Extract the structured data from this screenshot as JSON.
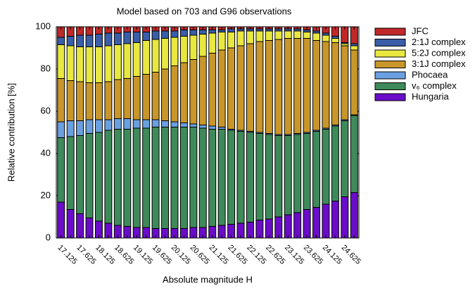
{
  "chart_data": {
    "type": "stacked_bar",
    "title": "Model based on 703 and G96 observations",
    "x_label": "Absolute magnitude H",
    "y_label": "Relative contribution [%]",
    "categories": [
      "17.125",
      null,
      "17.625",
      null,
      "18.125",
      null,
      "18.625",
      null,
      "19.125",
      null,
      "19.625",
      null,
      "20.125",
      null,
      "20.625",
      null,
      "21.125",
      null,
      "21.625",
      null,
      "22.125",
      null,
      "22.625",
      null,
      "23.125",
      null,
      "23.625",
      null,
      "24.125",
      null,
      "24.625",
      null
    ],
    "ylim": [
      0,
      100
    ],
    "yticks": [
      0,
      20,
      40,
      60,
      80,
      100
    ],
    "legend": "outside-right",
    "series": [
      {
        "name": "Hungaria",
        "color": "#6a0cc8",
        "values": [
          17,
          13.5,
          11.5,
          9.5,
          8,
          7,
          6,
          5.5,
          5,
          5,
          4.5,
          4.5,
          4.5,
          4.5,
          5,
          5,
          5.5,
          6,
          6.5,
          7,
          7.5,
          8.5,
          9,
          10,
          11,
          12,
          13.5,
          14.5,
          16,
          17.5,
          19.5,
          21.5
        ]
      },
      {
        "name": "v₆ complex",
        "color": "#3f8a5a",
        "values": [
          30.5,
          34.5,
          37,
          40,
          42,
          44,
          45.5,
          46,
          47,
          47,
          48,
          48,
          48,
          48,
          47.5,
          47,
          46,
          45.5,
          44.5,
          43.5,
          42.5,
          41,
          40,
          38.5,
          37.5,
          37,
          36,
          36,
          35.5,
          35.5,
          36,
          36.5
        ]
      },
      {
        "name": "Phocaea",
        "color": "#6a9fe0",
        "values": [
          7.5,
          7.5,
          7,
          6.5,
          6,
          5,
          5,
          5,
          4,
          4,
          3.5,
          3,
          2.5,
          2,
          1.5,
          1.5,
          1.5,
          1,
          0.5,
          0.5,
          0.5,
          0.5,
          0.5,
          0.5,
          0.5,
          0.5,
          0.5,
          0.5,
          0.5,
          0.5,
          0.5,
          0.3
        ]
      },
      {
        "name": "3:1J complex",
        "color": "#c8962a",
        "values": [
          20.5,
          19,
          18.5,
          17.5,
          17.5,
          18,
          18.5,
          19,
          20.5,
          21.5,
          22.5,
          24.5,
          26.5,
          28.5,
          30.5,
          32.5,
          34.5,
          36.5,
          38.5,
          40,
          41.5,
          43,
          44,
          45,
          45.5,
          45,
          44.5,
          42.5,
          41,
          39,
          35,
          30.7
        ]
      },
      {
        "name": "5:2J complex",
        "color": "#e8e840",
        "values": [
          16,
          16.5,
          16.5,
          17,
          17,
          17,
          16.5,
          16.5,
          16,
          16,
          15.5,
          14.5,
          13.5,
          12.5,
          11.5,
          10.5,
          9.5,
          8.5,
          7.5,
          7,
          6,
          5,
          4.5,
          4,
          3.5,
          3.5,
          3,
          3.5,
          3,
          2,
          1,
          2
        ]
      },
      {
        "name": "2:1J complex",
        "color": "#3a5ea8",
        "values": [
          3.5,
          4.5,
          5.5,
          5.5,
          6,
          6,
          5.5,
          5.5,
          5,
          4,
          4,
          3.5,
          3,
          3,
          2.5,
          2,
          1.5,
          1,
          1.5,
          1,
          1,
          1,
          1,
          1,
          1,
          1,
          1,
          1,
          1,
          1,
          0.5,
          1
        ]
      },
      {
        "name": "JFC",
        "color": "#c0282a",
        "values": [
          5,
          4.5,
          4,
          4,
          3.5,
          3,
          3,
          2.5,
          2.5,
          2.5,
          2,
          2,
          2,
          1.5,
          1.5,
          1.5,
          1.5,
          1.5,
          1,
          1,
          1,
          1,
          1,
          1,
          1,
          1,
          1.5,
          2,
          3,
          4.5,
          7.5,
          8
        ]
      }
    ]
  }
}
